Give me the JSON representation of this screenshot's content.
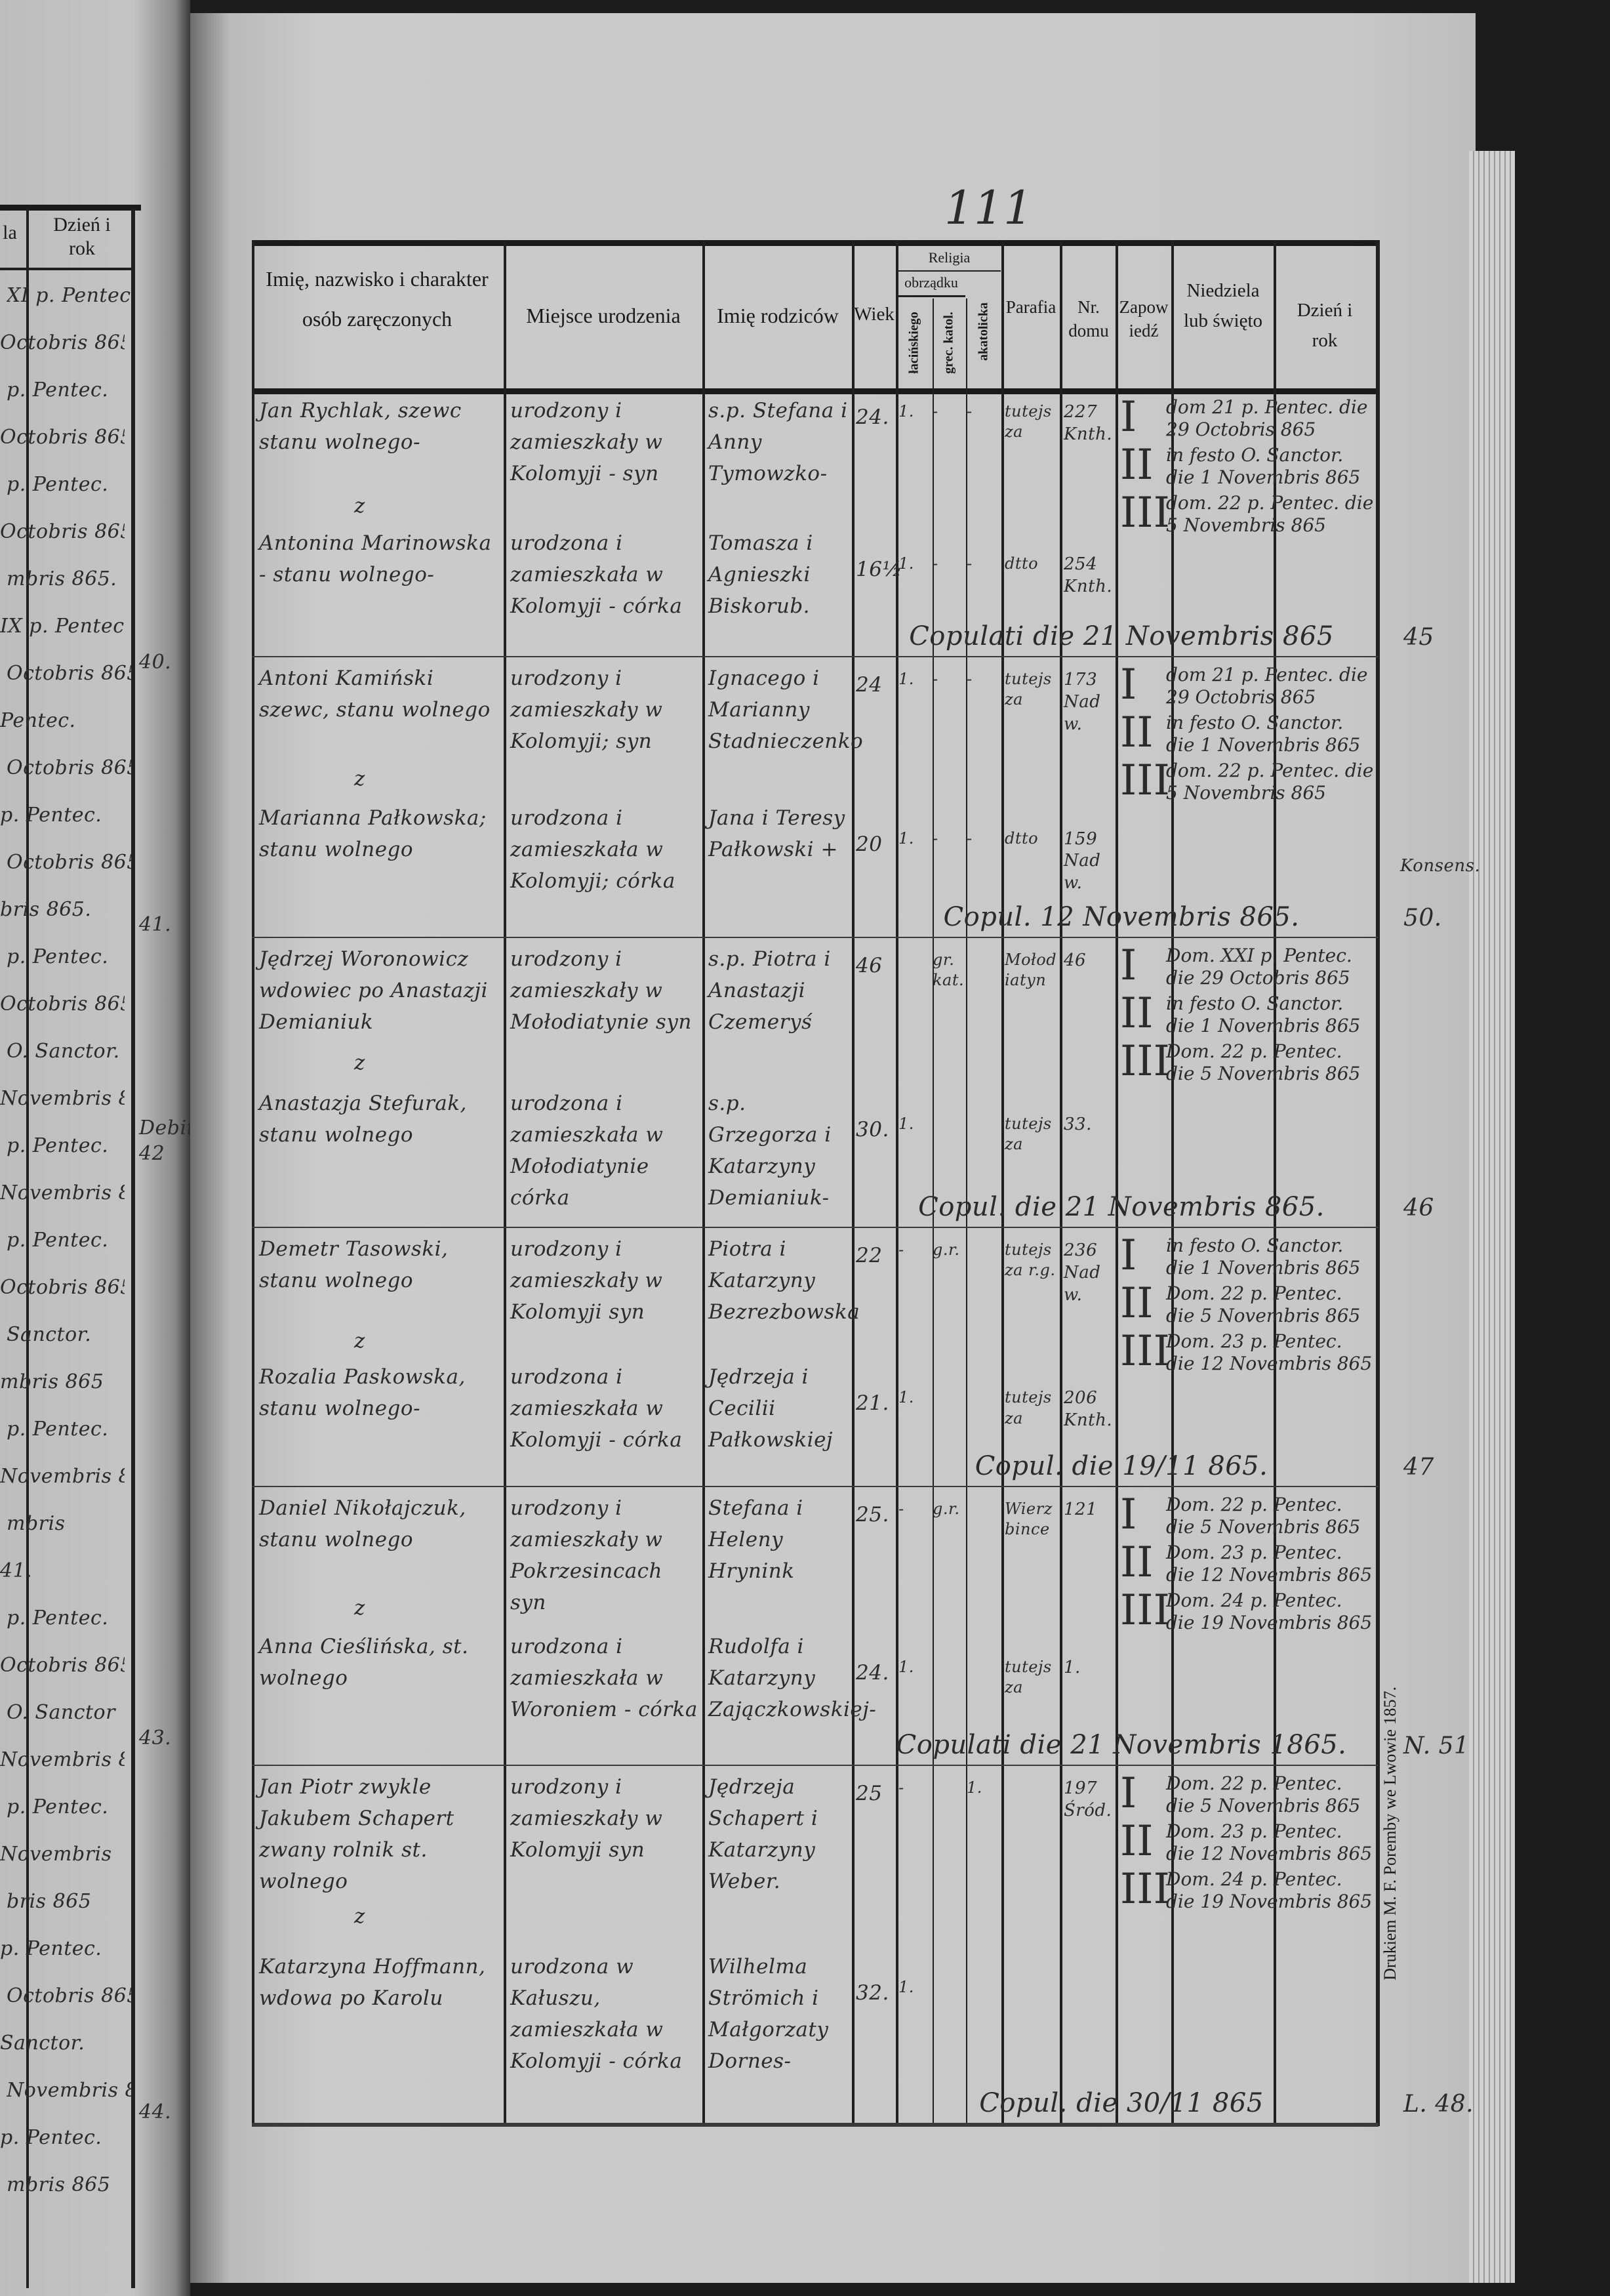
{
  "page_number": "111",
  "left_page": {
    "header_partial": "la",
    "header_day_year": "Dzień i rok",
    "fragments": [
      "XI p. Pentec.",
      "Octobris 865.",
      "p. Pentec.",
      "Octobris 865.",
      "p. Pentec.",
      "Octobris 865.",
      "mbris 865.",
      "IX p. Pentec.",
      "Octobris 865.",
      "Pentec.",
      "Octobris 865.",
      "p. Pentec.",
      "Octobris 865.",
      "bris 865.",
      "p. Pentec.",
      "Octobris 865",
      "O. Sanctor.",
      "Novembris 865",
      "p. Pentec.",
      "Novembris 865",
      "p. Pentec.",
      "Octobris 865",
      "Sanctor.",
      "mbris 865",
      "p. Pentec.",
      "Novembris 865",
      "mbris",
      "41.",
      "p. Pentec.",
      "Octobris 865",
      "O. Sanctor",
      "Novembris 865",
      "p. Pentec.",
      "Novembris",
      "bris 865",
      "p. Pentec.",
      "Octobris 865",
      "Sanctor.",
      "Novembris 865",
      "p. Pentec.",
      "mbris 865"
    ],
    "margin_numbers": [
      "40.",
      "41.",
      "Debit 42",
      "43.",
      "44."
    ]
  },
  "table_header": {
    "col_names": "Imię, nazwisko i charakter osób zaręczonych",
    "col_birthplace": "Miejsce urodzenia",
    "col_parents": "Imię rodziców",
    "col_age": "Wiek",
    "col_religion": "Religia",
    "col_rite": "obrządku",
    "col_latin": "łacińskiego",
    "col_greek": "grec. katol.",
    "col_noncatholic": "akatolicka",
    "col_parish": "Parafia",
    "col_house": "Nr. domu",
    "col_banns": "Zapowiedź",
    "col_sunday": "Niedziela lub święto",
    "col_date": "Dzień i rok"
  },
  "entries": [
    {
      "groom": "Jan Rychlak, szewc stanu wolnego-",
      "bride": "Antonina Marinowska - stanu wolnego-",
      "groom_birthplace": "urodzony i zamieszkały w Kolomyji - syn",
      "bride_birthplace": "urodzona i zamieszkała w Kolomyji - córka",
      "groom_parents": "s.p. Stefana i Anny Tymowzko-",
      "bride_parents": "Tomasza i Agnieszki Biskorub.",
      "groom_age": "24.",
      "bride_age": "16½",
      "groom_rel": [
        "1.",
        "-",
        "-"
      ],
      "bride_rel": [
        "1.",
        "-",
        "-"
      ],
      "groom_parish": "tutejsza",
      "bride_parish": "dtto",
      "groom_house": "227 Knth.",
      "bride_house": "254 Knth.",
      "banns": [
        {
          "num": "I",
          "text": "dom 21 p. Pentec. die 29 Octobris 865"
        },
        {
          "num": "II",
          "text": "in festo O. Sanctor. die 1 Novembris 865"
        },
        {
          "num": "III",
          "text": "dom. 22 p. Pentec. die 5 Novembris 865"
        }
      ],
      "copulation": "Copulati die 21 Novembris 865",
      "margin": "45"
    },
    {
      "groom": "Antoni Kamiński szewc, stanu wolnego",
      "bride": "Marianna Pałkowska; stanu wolnego",
      "groom_birthplace": "urodzony i zamieszkały w Kolomyji; syn",
      "bride_birthplace": "urodzona i zamieszkała w Kolomyji; córka",
      "groom_parents": "Ignacego i Marianny Stadnieczenko",
      "bride_parents": "Jana i Teresy Pałkowski +",
      "groom_age": "24",
      "bride_age": "20",
      "groom_rel": [
        "1.",
        "-",
        "-"
      ],
      "bride_rel": [
        "1.",
        "-",
        "-"
      ],
      "groom_parish": "tutejsza",
      "bride_parish": "dtto",
      "groom_house": "173 Nadw.",
      "bride_house": "159 Nadw.",
      "banns": [
        {
          "num": "I",
          "text": "dom 21 p. Pentec. die 29 Octobris 865"
        },
        {
          "num": "II",
          "text": "in festo O. Sanctor. die 1 Novembris 865"
        },
        {
          "num": "III",
          "text": "dom. 22 p. Pentec. die 5 Novembris 865"
        }
      ],
      "copulation": "Copul. 12 Novembris 865.",
      "margin": "50."
    },
    {
      "groom": "Jędrzej Woronowicz wdowiec po Anastazji Demianiuk",
      "bride": "Anastazja Stefurak, stanu wolnego",
      "groom_birthplace": "urodzony i zamieszkały w Mołodiatynie syn",
      "bride_birthplace": "urodzona i zamieszkała w Mołodiatynie córka",
      "groom_parents": "s.p. Piotra i Anastazji Czemeryś",
      "bride_parents": "s.p. Grzegorza i Katarzyny Demianiuk-",
      "groom_age": "46",
      "bride_age": "30.",
      "groom_rel": [
        "",
        "gr. kat.",
        ""
      ],
      "bride_rel": [
        "1.",
        "",
        ""
      ],
      "groom_parish": "Mołodiatyn",
      "bride_parish": "tutejsza",
      "groom_house": "46",
      "bride_house": "33.",
      "banns": [
        {
          "num": "I",
          "text": "Dom. XXI p. Pentec. die 29 Octobris 865"
        },
        {
          "num": "II",
          "text": "in festo O. Sanctor. die 1 Novembris 865"
        },
        {
          "num": "III",
          "text": "Dom. 22 p. Pentec. die 5 Novembris 865"
        }
      ],
      "copulation": "Copul. die 21 Novembris 865.",
      "margin": "46"
    },
    {
      "groom": "Demetr Tasowski, stanu wolnego",
      "bride": "Rozalia Paskowska, stanu wolnego-",
      "groom_birthplace": "urodzony i zamieszkały w Kolomyji syn",
      "bride_birthplace": "urodzona i zamieszkała w Kolomyji - córka",
      "groom_parents": "Piotra i Katarzyny Bezrezbowska",
      "bride_parents": "Jędrzeja i Cecilii Pałkowskiej",
      "groom_age": "22",
      "bride_age": "21.",
      "groom_rel": [
        "-",
        "g.r.",
        ""
      ],
      "bride_rel": [
        "1.",
        "",
        ""
      ],
      "groom_parish": "tutejsza r.g.",
      "bride_parish": "tutejsza",
      "groom_house": "236 Nadw.",
      "bride_house": "206 Knth.",
      "banns": [
        {
          "num": "I",
          "text": "in festo O. Sanctor. die 1 Novembris 865"
        },
        {
          "num": "II",
          "text": "Dom. 22 p. Pentec. die 5 Novembris 865"
        },
        {
          "num": "III",
          "text": "Dom. 23 p. Pentec. die 12 Novembris 865"
        }
      ],
      "copulation": "Copul. die 19/11 865.",
      "margin": "47"
    },
    {
      "groom": "Daniel Nikołajczuk, stanu wolnego",
      "bride": "Anna Cieślińska, st. wolnego",
      "groom_birthplace": "urodzony i zamieszkały w Pokrzesincach syn",
      "bride_birthplace": "urodzona i zamieszkała w Woroniem - córka",
      "groom_parents": "Stefana i Heleny Hrynink",
      "bride_parents": "Rudolfa i Katarzyny Zajączkowskiej-",
      "groom_age": "25.",
      "bride_age": "24.",
      "groom_rel": [
        "-",
        "g.r.",
        ""
      ],
      "bride_rel": [
        "1.",
        "",
        ""
      ],
      "groom_parish": "Wierzbince",
      "bride_parish": "tutejsza",
      "groom_house": "121",
      "bride_house": "1.",
      "banns": [
        {
          "num": "I",
          "text": "Dom. 22 p. Pentec. die 5 Novembris 865"
        },
        {
          "num": "II",
          "text": "Dom. 23 p. Pentec. die 12 Novembris 865"
        },
        {
          "num": "III",
          "text": "Dom. 24 p. Pentec. die 19 Novembris 865"
        }
      ],
      "copulation": "Copulati die 21 Novembris 1865.",
      "margin": "N. 51"
    },
    {
      "groom": "Jan Piotr zwykle Jakubem Schapert zwany rolnik st. wolnego",
      "bride": "Katarzyna Hoffmann, wdowa po Karolu",
      "groom_birthplace": "urodzony i zamieszkały w Kolomyji syn",
      "bride_birthplace": "urodzona w Kałuszu, zamieszkała w Kolomyji - córka",
      "groom_parents": "Jędrzeja Schapert i Katarzyny Weber.",
      "bride_parents": "Wilhelma Strömich i Małgorzaty Dornes-",
      "groom_age": "25",
      "bride_age": "32.",
      "groom_rel": [
        "-",
        "",
        "1."
      ],
      "bride_rel": [
        "1.",
        "",
        ""
      ],
      "groom_parish": "",
      "bride_parish": "",
      "groom_house": "197 Śród.",
      "bride_house": "",
      "banns": [
        {
          "num": "I",
          "text": "Dom. 22 p. Pentec. die 5 Novembris 865"
        },
        {
          "num": "II",
          "text": "Dom. 23 p. Pentec. die 12 Novembris 865"
        },
        {
          "num": "III",
          "text": "Dom. 24 p. Pentec. die 19 Novembris 865"
        }
      ],
      "copulation": "Copul. die 30/11 865",
      "margin": "L. 48."
    }
  ],
  "margin_extra": "Konsens.",
  "printer": "Drukiem M. F. Poremby we Lwowie 1857."
}
